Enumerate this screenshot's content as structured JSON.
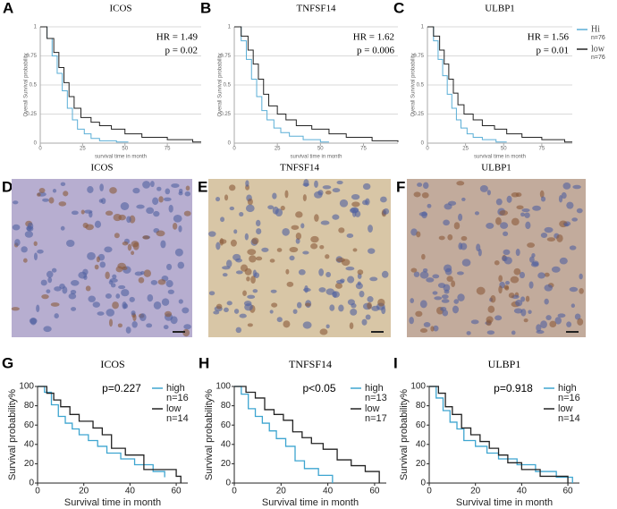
{
  "chart_data": [
    {
      "type": "step",
      "panel": "A",
      "title": "ICOS",
      "x_label": "survival time in month",
      "y_label": "Overall Survival probability",
      "xlim": [
        0,
        95
      ],
      "ylim": [
        0,
        1
      ],
      "xticks": [
        0,
        25,
        50,
        75
      ],
      "yticks": [
        0,
        0.25,
        0.5,
        0.75,
        1
      ],
      "grid": true,
      "annotations": [
        "HR = 1.49",
        "p = 0.02"
      ],
      "series": [
        {
          "color": "#5aaed6",
          "x": [
            0,
            4,
            7,
            10,
            13,
            16,
            19,
            22,
            26,
            30,
            35,
            45,
            52
          ],
          "values": [
            1,
            0.9,
            0.75,
            0.6,
            0.45,
            0.3,
            0.2,
            0.12,
            0.08,
            0.04,
            0.02,
            0.01,
            0.01
          ]
        },
        {
          "color": "#222222",
          "x": [
            0,
            4,
            8,
            11,
            14,
            17,
            20,
            24,
            30,
            35,
            42,
            50,
            60,
            75,
            90,
            95
          ],
          "values": [
            1,
            0.9,
            0.78,
            0.65,
            0.52,
            0.4,
            0.3,
            0.22,
            0.18,
            0.15,
            0.12,
            0.08,
            0.05,
            0.03,
            0.01,
            0.01
          ]
        }
      ]
    },
    {
      "type": "step",
      "panel": "B",
      "title": "TNFSF14",
      "x_label": "survival time in month",
      "y_label": "Overall Survival probability",
      "xlim": [
        0,
        95
      ],
      "ylim": [
        0,
        1
      ],
      "xticks": [
        0,
        25,
        50,
        75
      ],
      "yticks": [
        0,
        0.25,
        0.5,
        0.75,
        1
      ],
      "grid": true,
      "annotations": [
        "HR = 1.62",
        "p = 0.006"
      ],
      "series": [
        {
          "color": "#5aaed6",
          "x": [
            0,
            4,
            7,
            10,
            13,
            16,
            19,
            23,
            27,
            32,
            40,
            50,
            55
          ],
          "values": [
            1,
            0.88,
            0.72,
            0.55,
            0.4,
            0.28,
            0.2,
            0.13,
            0.09,
            0.06,
            0.03,
            0.01,
            0.01
          ]
        },
        {
          "color": "#222222",
          "x": [
            0,
            4,
            8,
            11,
            14,
            17,
            20,
            25,
            30,
            36,
            45,
            55,
            65,
            80,
            95
          ],
          "values": [
            1,
            0.92,
            0.8,
            0.68,
            0.55,
            0.42,
            0.32,
            0.25,
            0.2,
            0.15,
            0.12,
            0.08,
            0.05,
            0.02,
            0.01
          ]
        }
      ]
    },
    {
      "type": "step",
      "panel": "C",
      "title": "ULBP1",
      "x_label": "survival time in month",
      "y_label": "Overall Survival probability",
      "xlim": [
        0,
        95
      ],
      "ylim": [
        0,
        1
      ],
      "xticks": [
        0,
        25,
        50,
        75
      ],
      "yticks": [
        0,
        0.25,
        0.5,
        0.75,
        1
      ],
      "grid": true,
      "annotations": [
        "HR = 1.56",
        "p = 0.01"
      ],
      "legend": true,
      "series": [
        {
          "name": "Hi",
          "n_label": "n=76",
          "color": "#5aaed6",
          "x": [
            0,
            4,
            7,
            10,
            13,
            16,
            19,
            22,
            26,
            30,
            36,
            45,
            52
          ],
          "values": [
            1,
            0.88,
            0.72,
            0.58,
            0.42,
            0.3,
            0.2,
            0.13,
            0.08,
            0.05,
            0.03,
            0.01,
            0.01
          ]
        },
        {
          "name": "low",
          "n_label": "n=76",
          "color": "#222222",
          "x": [
            0,
            4,
            8,
            11,
            14,
            17,
            20,
            24,
            30,
            36,
            44,
            52,
            62,
            75,
            90,
            95
          ],
          "values": [
            1,
            0.92,
            0.8,
            0.68,
            0.55,
            0.43,
            0.33,
            0.25,
            0.2,
            0.15,
            0.12,
            0.08,
            0.05,
            0.03,
            0.01,
            0.01
          ]
        }
      ]
    },
    {
      "type": "step",
      "panel": "G",
      "title": "ICOS",
      "x_label": "Survival time in month",
      "y_label": "Survival probability%",
      "xlim": [
        0,
        65
      ],
      "ylim": [
        0,
        100
      ],
      "xticks": [
        0,
        20,
        40,
        60
      ],
      "yticks": [
        0,
        20,
        40,
        60,
        80,
        100
      ],
      "annotations": [
        "p=0.227"
      ],
      "legend": true,
      "series": [
        {
          "name": "high",
          "n_label": "n=16",
          "color": "#3da5d0",
          "x": [
            0,
            3,
            6,
            9,
            12,
            15,
            18,
            22,
            26,
            30,
            36,
            42,
            50,
            55
          ],
          "values": [
            100,
            94,
            81,
            69,
            62,
            56,
            50,
            44,
            38,
            31,
            25,
            19,
            12,
            6
          ]
        },
        {
          "name": "low",
          "n_label": "n=14",
          "color": "#222222",
          "x": [
            0,
            4,
            7,
            10,
            14,
            18,
            24,
            28,
            32,
            38,
            46,
            60,
            62
          ],
          "values": [
            100,
            93,
            86,
            79,
            71,
            64,
            57,
            50,
            36,
            29,
            14,
            7,
            0
          ]
        }
      ]
    },
    {
      "type": "step",
      "panel": "H",
      "title": "TNFSF14",
      "x_label": "Survival time in month",
      "y_label": "Survival probability%",
      "xlim": [
        0,
        65
      ],
      "ylim": [
        0,
        100
      ],
      "xticks": [
        0,
        20,
        40,
        60
      ],
      "yticks": [
        0,
        20,
        40,
        60,
        80,
        100
      ],
      "annotations": [
        "p<0.05"
      ],
      "legend": true,
      "series": [
        {
          "name": "high",
          "n_label": "n=13",
          "color": "#3da5d0",
          "x": [
            0,
            3,
            6,
            9,
            12,
            15,
            18,
            22,
            26,
            30,
            36,
            42
          ],
          "values": [
            100,
            92,
            77,
            69,
            62,
            54,
            46,
            38,
            23,
            15,
            8,
            0
          ]
        },
        {
          "name": "low",
          "n_label": "n=17",
          "color": "#222222",
          "x": [
            0,
            5,
            9,
            13,
            17,
            21,
            25,
            29,
            33,
            38,
            44,
            50,
            56,
            62
          ],
          "values": [
            100,
            94,
            88,
            76,
            71,
            65,
            53,
            47,
            41,
            35,
            24,
            18,
            12,
            0
          ]
        }
      ]
    },
    {
      "type": "step",
      "panel": "I",
      "title": "ULBP1",
      "x_label": "Survival time in month",
      "y_label": "Survival probability%",
      "xlim": [
        0,
        65
      ],
      "ylim": [
        0,
        100
      ],
      "xticks": [
        0,
        20,
        40,
        60
      ],
      "yticks": [
        0,
        20,
        40,
        60,
        80,
        100
      ],
      "annotations": [
        "p=0.918"
      ],
      "legend": true,
      "series": [
        {
          "name": "high",
          "n_label": "n=16",
          "color": "#3da5d0",
          "x": [
            0,
            3,
            6,
            9,
            12,
            15,
            20,
            25,
            30,
            38,
            46,
            55,
            62
          ],
          "values": [
            100,
            88,
            75,
            63,
            56,
            44,
            38,
            31,
            25,
            19,
            12,
            6,
            0
          ]
        },
        {
          "name": "low",
          "n_label": "n=14",
          "color": "#222222",
          "x": [
            0,
            4,
            7,
            10,
            14,
            18,
            22,
            26,
            30,
            34,
            40,
            48,
            60
          ],
          "values": [
            100,
            93,
            79,
            71,
            57,
            50,
            43,
            36,
            29,
            21,
            14,
            7,
            0
          ]
        }
      ]
    }
  ],
  "images": [
    {
      "panel": "D",
      "title": "ICOS",
      "tint": "#b7aed0"
    },
    {
      "panel": "E",
      "title": "TNFSF14",
      "tint": "#d8c6a6"
    },
    {
      "panel": "F",
      "title": "ULBP1",
      "tint": "#c2ab9c"
    }
  ]
}
